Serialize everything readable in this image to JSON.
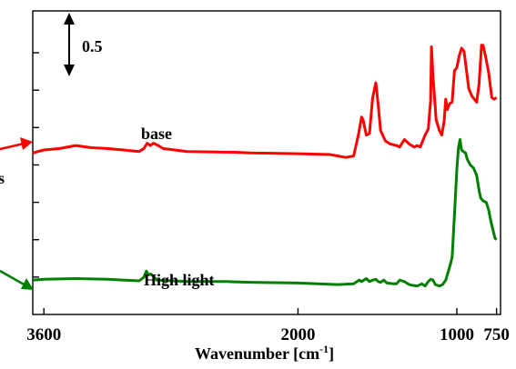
{
  "chart_data": {
    "type": "line",
    "xlabel": "Wavenumber [cm",
    "xlabel_sup": "-1",
    "xlabel_close": "]",
    "x_reversed": true,
    "xlim": [
      3670,
      725
    ],
    "ylim": [
      -0.25,
      1.78
    ],
    "x_ticks": [
      {
        "value": 3600,
        "label": "3600"
      },
      {
        "value": 2000,
        "label": "2000"
      },
      {
        "value": 1000,
        "label": "1000"
      },
      {
        "value": 750,
        "label": "750"
      }
    ],
    "y_tick_values": [
      0,
      0.25,
      0.5,
      0.75,
      1.0,
      1.25,
      1.5
    ],
    "scale_bar": {
      "label": "0.5",
      "value": 0.5
    },
    "annotations": [
      {
        "text": "base",
        "series": "base"
      },
      {
        "text": "High light",
        "series": "High light"
      },
      {
        "text": "s"
      }
    ],
    "series": [
      {
        "name": "base",
        "color": "#ff0000",
        "points": [
          [
            3670,
            0.83
          ],
          [
            3600,
            0.85
          ],
          [
            3500,
            0.86
          ],
          [
            3400,
            0.88
          ],
          [
            3300,
            0.865
          ],
          [
            3200,
            0.86
          ],
          [
            3100,
            0.85
          ],
          [
            3000,
            0.84
          ],
          [
            2970,
            0.86
          ],
          [
            2950,
            0.895
          ],
          [
            2930,
            0.88
          ],
          [
            2910,
            0.895
          ],
          [
            2880,
            0.88
          ],
          [
            2850,
            0.86
          ],
          [
            2700,
            0.84
          ],
          [
            2400,
            0.835
          ],
          [
            2300,
            0.83
          ],
          [
            2000,
            0.825
          ],
          [
            1800,
            0.82
          ],
          [
            1700,
            0.8
          ],
          [
            1650,
            0.81
          ],
          [
            1620,
            0.95
          ],
          [
            1600,
            1.07
          ],
          [
            1590,
            1.05
          ],
          [
            1570,
            0.95
          ],
          [
            1550,
            0.96
          ],
          [
            1530,
            1.2
          ],
          [
            1510,
            1.3
          ],
          [
            1495,
            1.15
          ],
          [
            1480,
            0.98
          ],
          [
            1450,
            0.91
          ],
          [
            1420,
            0.89
          ],
          [
            1380,
            0.88
          ],
          [
            1360,
            0.87
          ],
          [
            1330,
            0.92
          ],
          [
            1300,
            0.89
          ],
          [
            1270,
            0.87
          ],
          [
            1250,
            0.88
          ],
          [
            1230,
            0.87
          ],
          [
            1200,
            0.95
          ],
          [
            1180,
            0.99
          ],
          [
            1165,
            1.18
          ],
          [
            1160,
            1.54
          ],
          [
            1150,
            1.34
          ],
          [
            1130,
            1.05
          ],
          [
            1110,
            0.98
          ],
          [
            1095,
            0.95
          ],
          [
            1080,
            1.04
          ],
          [
            1070,
            1.19
          ],
          [
            1060,
            1.12
          ],
          [
            1045,
            1.16
          ],
          [
            1030,
            1.17
          ],
          [
            1015,
            1.38
          ],
          [
            1000,
            1.4
          ],
          [
            985,
            1.48
          ],
          [
            970,
            1.53
          ],
          [
            955,
            1.51
          ],
          [
            945,
            1.43
          ],
          [
            925,
            1.26
          ],
          [
            905,
            1.21
          ],
          [
            890,
            1.19
          ],
          [
            875,
            1.17
          ],
          [
            860,
            1.29
          ],
          [
            845,
            1.55
          ],
          [
            835,
            1.55
          ],
          [
            820,
            1.48
          ],
          [
            800,
            1.37
          ],
          [
            780,
            1.2
          ],
          [
            765,
            1.19
          ],
          [
            750,
            1.2
          ]
        ]
      },
      {
        "name": "High light",
        "color": "#008000",
        "points": [
          [
            3670,
            -0.02
          ],
          [
            3600,
            -0.015
          ],
          [
            3400,
            -0.01
          ],
          [
            3200,
            -0.015
          ],
          [
            3000,
            -0.025
          ],
          [
            2970,
            0.0
          ],
          [
            2955,
            0.04
          ],
          [
            2940,
            0.015
          ],
          [
            2925,
            0.02
          ],
          [
            2905,
            0.0
          ],
          [
            2890,
            -0.02
          ],
          [
            2700,
            -0.03
          ],
          [
            2450,
            -0.03
          ],
          [
            2300,
            -0.035
          ],
          [
            2000,
            -0.04
          ],
          [
            1750,
            -0.05
          ],
          [
            1650,
            -0.045
          ],
          [
            1615,
            -0.02
          ],
          [
            1600,
            -0.03
          ],
          [
            1570,
            -0.01
          ],
          [
            1550,
            -0.03
          ],
          [
            1530,
            -0.02
          ],
          [
            1510,
            -0.015
          ],
          [
            1495,
            -0.03
          ],
          [
            1480,
            -0.035
          ],
          [
            1460,
            -0.02
          ],
          [
            1440,
            -0.04
          ],
          [
            1400,
            -0.045
          ],
          [
            1380,
            -0.045
          ],
          [
            1360,
            -0.02
          ],
          [
            1330,
            -0.03
          ],
          [
            1300,
            -0.05
          ],
          [
            1280,
            -0.055
          ],
          [
            1250,
            -0.06
          ],
          [
            1220,
            -0.045
          ],
          [
            1200,
            -0.06
          ],
          [
            1180,
            -0.03
          ],
          [
            1165,
            -0.015
          ],
          [
            1150,
            -0.02
          ],
          [
            1135,
            -0.05
          ],
          [
            1110,
            -0.06
          ],
          [
            1090,
            -0.05
          ],
          [
            1070,
            -0.02
          ],
          [
            1050,
            0.05
          ],
          [
            1030,
            0.13
          ],
          [
            1015,
            0.42
          ],
          [
            1000,
            0.72
          ],
          [
            990,
            0.86
          ],
          [
            980,
            0.92
          ],
          [
            970,
            0.85
          ],
          [
            960,
            0.84
          ],
          [
            945,
            0.83
          ],
          [
            935,
            0.79
          ],
          [
            915,
            0.75
          ],
          [
            895,
            0.73
          ],
          [
            875,
            0.68
          ],
          [
            860,
            0.58
          ],
          [
            850,
            0.53
          ],
          [
            835,
            0.51
          ],
          [
            815,
            0.5
          ],
          [
            800,
            0.45
          ],
          [
            785,
            0.37
          ],
          [
            760,
            0.26
          ],
          [
            750,
            0.25
          ]
        ]
      }
    ]
  }
}
